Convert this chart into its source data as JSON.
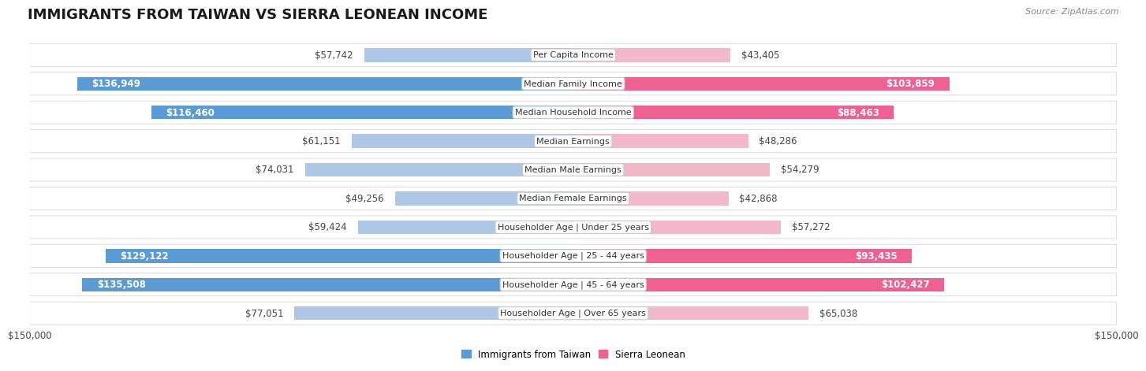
{
  "title": "IMMIGRANTS FROM TAIWAN VS SIERRA LEONEAN INCOME",
  "source": "Source: ZipAtlas.com",
  "categories": [
    "Per Capita Income",
    "Median Family Income",
    "Median Household Income",
    "Median Earnings",
    "Median Male Earnings",
    "Median Female Earnings",
    "Householder Age | Under 25 years",
    "Householder Age | 25 - 44 years",
    "Householder Age | 45 - 64 years",
    "Householder Age | Over 65 years"
  ],
  "taiwan_values": [
    57742,
    136949,
    116460,
    61151,
    74031,
    49256,
    59424,
    129122,
    135508,
    77051
  ],
  "sierra_values": [
    43405,
    103859,
    88463,
    48286,
    54279,
    42868,
    57272,
    93435,
    102427,
    65038
  ],
  "taiwan_labels": [
    "$57,742",
    "$136,949",
    "$116,460",
    "$61,151",
    "$74,031",
    "$49,256",
    "$59,424",
    "$129,122",
    "$135,508",
    "$77,051"
  ],
  "sierra_labels": [
    "$43,405",
    "$103,859",
    "$88,463",
    "$48,286",
    "$54,279",
    "$42,868",
    "$57,272",
    "$93,435",
    "$102,427",
    "$65,038"
  ],
  "taiwan_color_light": "#adc8e6",
  "taiwan_color_dark": "#5b9bd5",
  "sierra_color_light": "#f4b8cb",
  "sierra_color_dark": "#f06090",
  "max_value": 150000,
  "x_tick_labels": [
    "$150,000",
    "$150,000"
  ],
  "title_fontsize": 13,
  "label_fontsize": 8.5,
  "category_fontsize": 8.0,
  "inside_threshold": 80000,
  "sierra_inside_threshold": 70000
}
